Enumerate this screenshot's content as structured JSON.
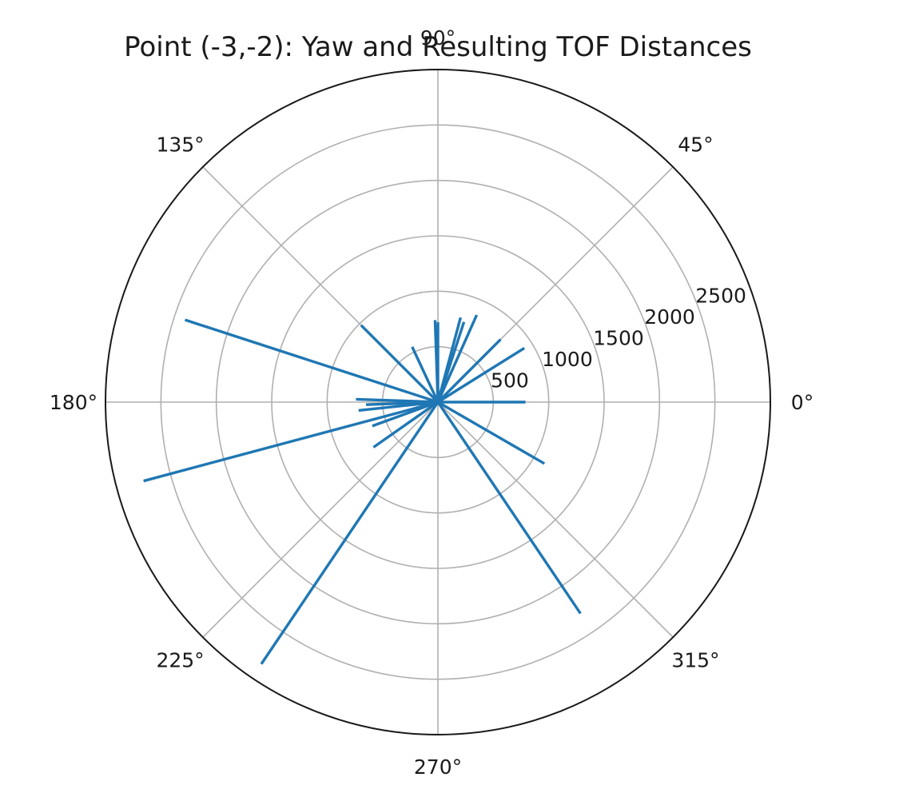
{
  "chart_data": {
    "type": "polar-line",
    "title": "Point (-3,-2): Yaw and Resulting TOF Distances",
    "angle_ticks": [
      {
        "deg": 0,
        "label": "0°"
      },
      {
        "deg": 45,
        "label": "45°"
      },
      {
        "deg": 90,
        "label": "90°"
      },
      {
        "deg": 135,
        "label": "135°"
      },
      {
        "deg": 180,
        "label": "180°"
      },
      {
        "deg": 225,
        "label": "225°"
      },
      {
        "deg": 270,
        "label": "270°"
      },
      {
        "deg": 315,
        "label": "315°"
      }
    ],
    "radial_ticks": [
      {
        "value": 500,
        "label": "500"
      },
      {
        "value": 1000,
        "label": "1000"
      },
      {
        "value": 1500,
        "label": "1500"
      },
      {
        "value": 2000,
        "label": "2000"
      },
      {
        "value": 2500,
        "label": "2500"
      }
    ],
    "rlim": [
      0,
      3000
    ],
    "grid": true,
    "line_color": "#1f77b4",
    "series": [
      {
        "points": [
          {
            "angle": 0,
            "r": 790
          },
          {
            "angle": 32,
            "r": 920
          },
          {
            "angle": 45,
            "r": 800
          },
          {
            "angle": 66,
            "r": 860
          },
          {
            "angle": 72,
            "r": 760
          },
          {
            "angle": 75,
            "r": 790
          },
          {
            "angle": 90,
            "r": 720
          },
          {
            "angle": 92,
            "r": 740
          },
          {
            "angle": 115,
            "r": 550
          },
          {
            "angle": 135,
            "r": 980
          },
          {
            "angle": 162,
            "r": 2400
          },
          {
            "angle": 178,
            "r": 740
          },
          {
            "angle": 182,
            "r": 650
          },
          {
            "angle": 186,
            "r": 720
          },
          {
            "angle": 195,
            "r": 2750
          },
          {
            "angle": 200,
            "r": 630
          },
          {
            "angle": 215,
            "r": 710
          },
          {
            "angle": 236,
            "r": 2850
          },
          {
            "angle": 304,
            "r": 2300
          },
          {
            "angle": 330,
            "r": 1110
          },
          {
            "angle": 360,
            "r": 0
          }
        ]
      }
    ]
  }
}
